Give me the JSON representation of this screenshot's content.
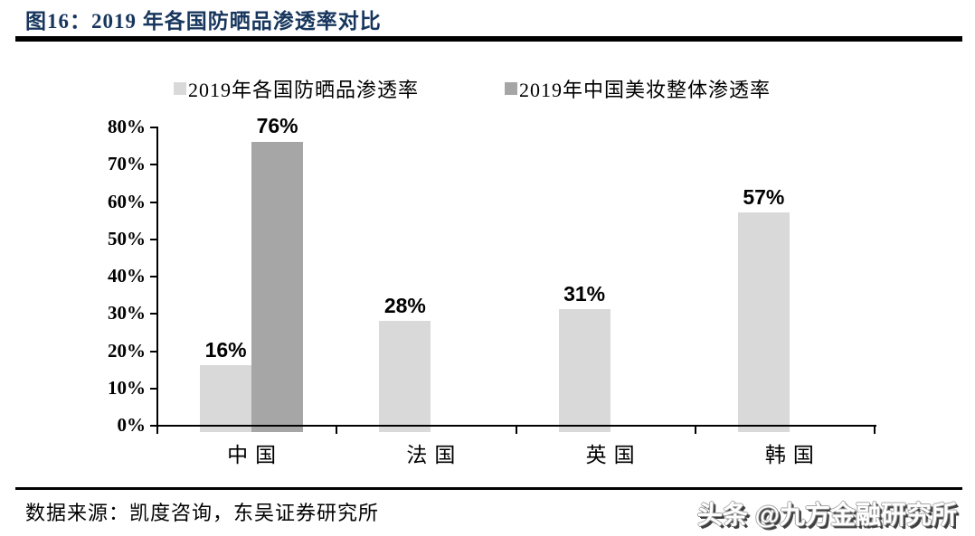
{
  "figure": {
    "title": "图16：2019 年各国防晒品渗透率对比",
    "source": "数据来源：凯度咨询，东吴证券研究所",
    "watermark": "头条 @九方金融研究所"
  },
  "legend": [
    {
      "label": "2019年各国防晒品渗透率",
      "color": "#d9d9d9"
    },
    {
      "label": "2019年中国美妆整体渗透率",
      "color": "#a6a6a6"
    }
  ],
  "colors": {
    "title": "#17365d",
    "axis": "#000000",
    "bar_light": "#d9d9d9",
    "bar_dark": "#a6a6a6",
    "background": "#ffffff"
  },
  "chart_data": {
    "type": "bar",
    "title": "2019 年各国防晒品渗透率对比",
    "categories": [
      "中国",
      "法国",
      "英国",
      "韩国"
    ],
    "series": [
      {
        "name": "2019年各国防晒品渗透率",
        "color": "#d9d9d9",
        "values": [
          16,
          28,
          31,
          57
        ]
      },
      {
        "name": "2019年中国美妆整体渗透率",
        "color": "#a6a6a6",
        "values": [
          76,
          null,
          null,
          null
        ]
      }
    ],
    "data_labels": {
      "series1": [
        "16%",
        "28%",
        "31%",
        "57%"
      ],
      "series2": [
        "76%",
        null,
        null,
        null
      ]
    },
    "xlabel": "",
    "ylabel": "",
    "ylim": [
      0,
      80
    ],
    "ytick_step": 10,
    "yticks": [
      "0%",
      "10%",
      "20%",
      "30%",
      "40%",
      "50%",
      "60%",
      "70%",
      "80%"
    ],
    "grid": false,
    "legend_position": "top"
  }
}
